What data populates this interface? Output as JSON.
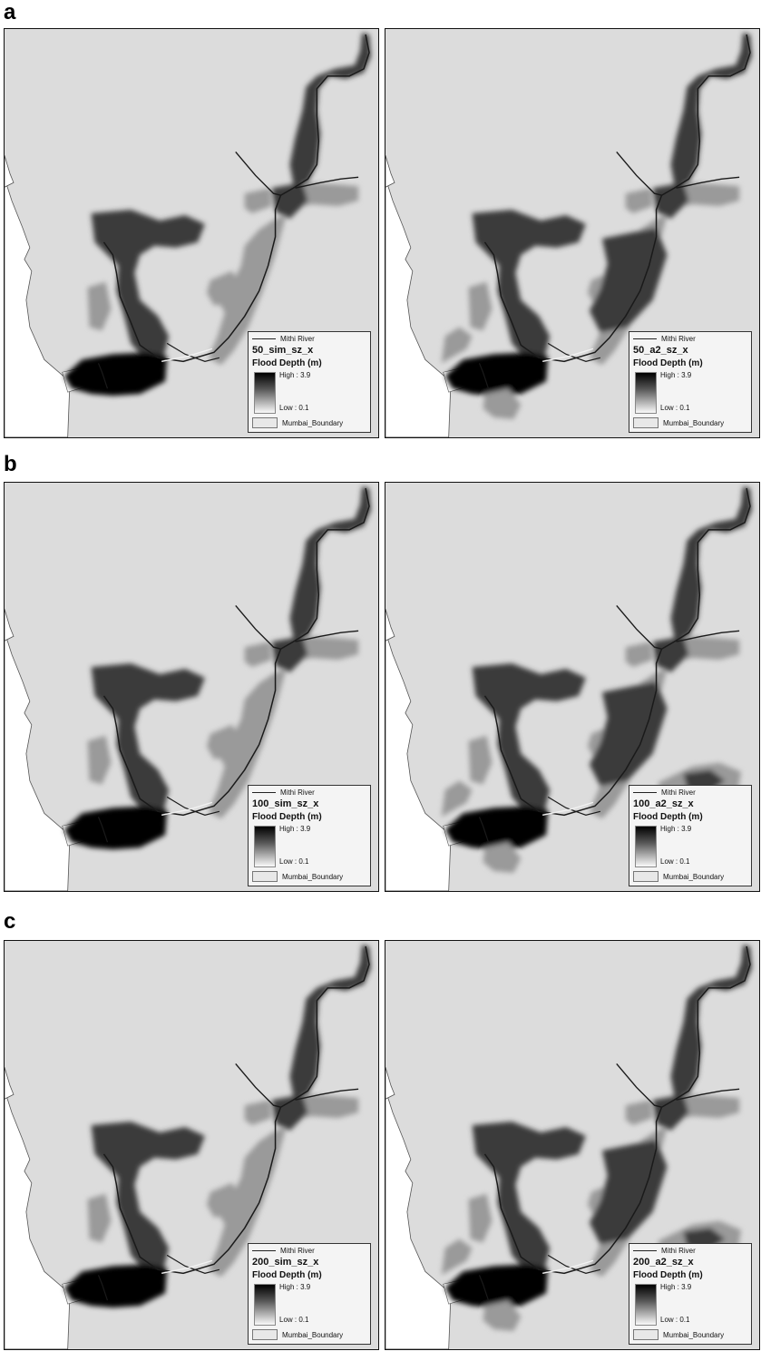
{
  "rows": [
    {
      "label": "a",
      "panels": [
        {
          "layer": "50_sim_sz_x",
          "extent": "sim"
        },
        {
          "layer": "50_a2_sz_x",
          "extent": "a2"
        }
      ]
    },
    {
      "label": "b",
      "panels": [
        {
          "layer": "100_sim_sz_x",
          "extent": "sim"
        },
        {
          "layer": "100_a2_sz_x",
          "extent": "a2_large"
        }
      ]
    },
    {
      "label": "c",
      "panels": [
        {
          "layer": "200_sim_sz_x",
          "extent": "sim"
        },
        {
          "layer": "200_a2_sz_x",
          "extent": "a2_large"
        }
      ]
    }
  ],
  "legend": {
    "river_label": "Mithi River",
    "depth_title": "Flood Depth (m)",
    "high_label": "High : 3.9",
    "low_label": "Low : 0.1",
    "boundary_label": "Mumbai_Boundary"
  },
  "colors": {
    "land": "#dcdcdc",
    "sea": "#ffffff",
    "flood_dark": "#3a3a3a",
    "flood_light": "#9a9a9a",
    "flood_deep": "#050505",
    "river": "#1a1a1a"
  }
}
